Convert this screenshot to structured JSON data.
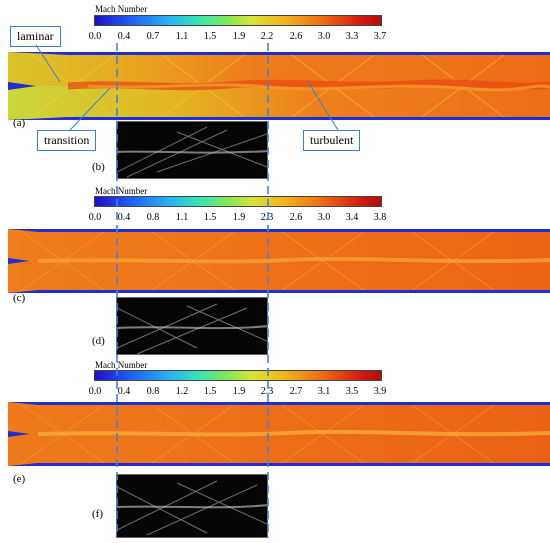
{
  "colorbars": [
    {
      "title": "Mach Number",
      "ticks": [
        "0.0",
        "0.4",
        "0.7",
        "1.1",
        "1.5",
        "1.9",
        "2.2",
        "2.6",
        "3.0",
        "3.3",
        "3.7"
      ]
    },
    {
      "title": "Mach Number",
      "ticks": [
        "0.0",
        "0.4",
        "0.8",
        "1.1",
        "1.5",
        "1.9",
        "2.3",
        "2.6",
        "3.0",
        "3.4",
        "3.8"
      ]
    },
    {
      "title": "Mach Number",
      "ticks": [
        "0.0",
        "0.4",
        "0.8",
        "1.2",
        "1.5",
        "1.9",
        "2.3",
        "2.7",
        "3.1",
        "3.5",
        "3.9"
      ]
    }
  ],
  "panels": {
    "a": "(a)",
    "b": "(b)",
    "c": "(c)",
    "d": "(d)",
    "e": "(e)",
    "f": "(f)"
  },
  "callouts": {
    "laminar": "laminar",
    "transition": "transition",
    "turbulent": "turbulent"
  },
  "colors": {
    "callout_border": "#3b7fd0",
    "dashed_line": "#4a7fd6"
  }
}
